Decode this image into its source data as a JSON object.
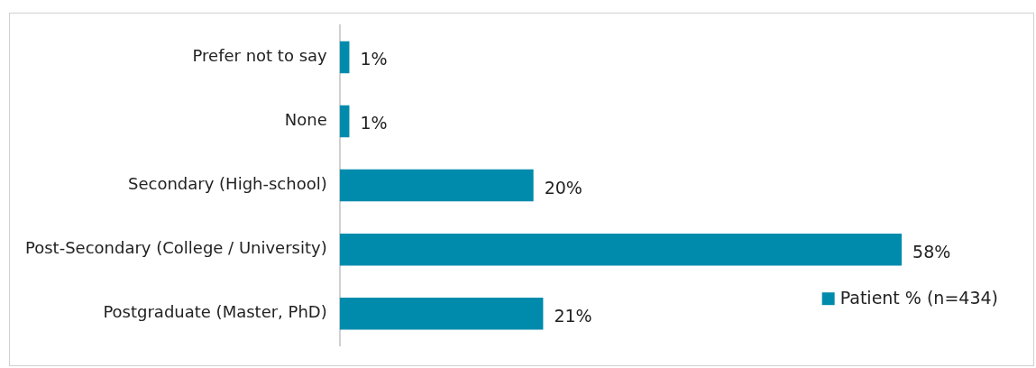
{
  "chart_data": {
    "type": "bar",
    "orientation": "horizontal",
    "categories": [
      "Prefer not to say",
      "None",
      "Secondary (High-school)",
      "Post-Secondary (College / University)",
      "Postgraduate (Master, PhD)"
    ],
    "series": [
      {
        "name": "Patient % (n=434)",
        "color": "#008bad",
        "values": [
          1,
          1,
          20,
          58,
          21
        ],
        "value_labels": [
          "1%",
          "1%",
          "20%",
          "58%",
          "21%"
        ]
      }
    ],
    "tick_labels": "y",
    "legend": "bottom right"
  }
}
